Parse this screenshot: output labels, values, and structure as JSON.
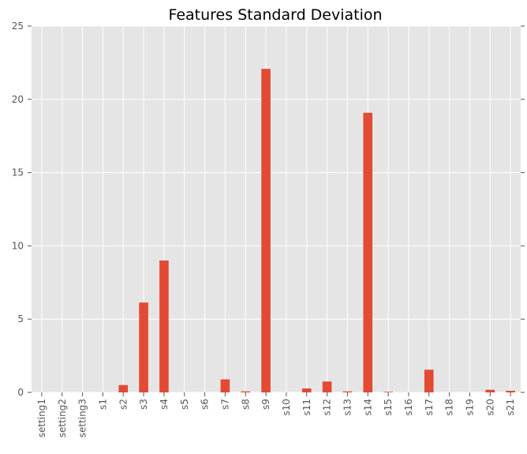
{
  "chart_data": {
    "type": "bar",
    "title": "Features Standard Deviation",
    "xlabel": "",
    "ylabel": "",
    "categories": [
      "setting1",
      "setting2",
      "setting3",
      "s1",
      "s2",
      "s3",
      "s4",
      "s5",
      "s6",
      "s7",
      "s8",
      "s9",
      "s10",
      "s11",
      "s12",
      "s13",
      "s14",
      "s15",
      "s16",
      "s17",
      "s18",
      "s19",
      "s20",
      "s21"
    ],
    "values": [
      0.002,
      0.0003,
      0,
      0,
      0.5,
      6.13,
      9.0,
      0,
      0,
      0.89,
      0.07,
      22.08,
      0,
      0.27,
      0.74,
      0.07,
      19.08,
      0.04,
      0,
      1.55,
      0,
      0,
      0.18,
      0.11
    ],
    "ylim": [
      0,
      25
    ],
    "yticks": [
      0,
      5,
      10,
      15,
      20,
      25
    ],
    "grid": true,
    "bar_color": "#e24a33",
    "background_color": "#e5e5e5",
    "grid_color": "#ffffff"
  }
}
